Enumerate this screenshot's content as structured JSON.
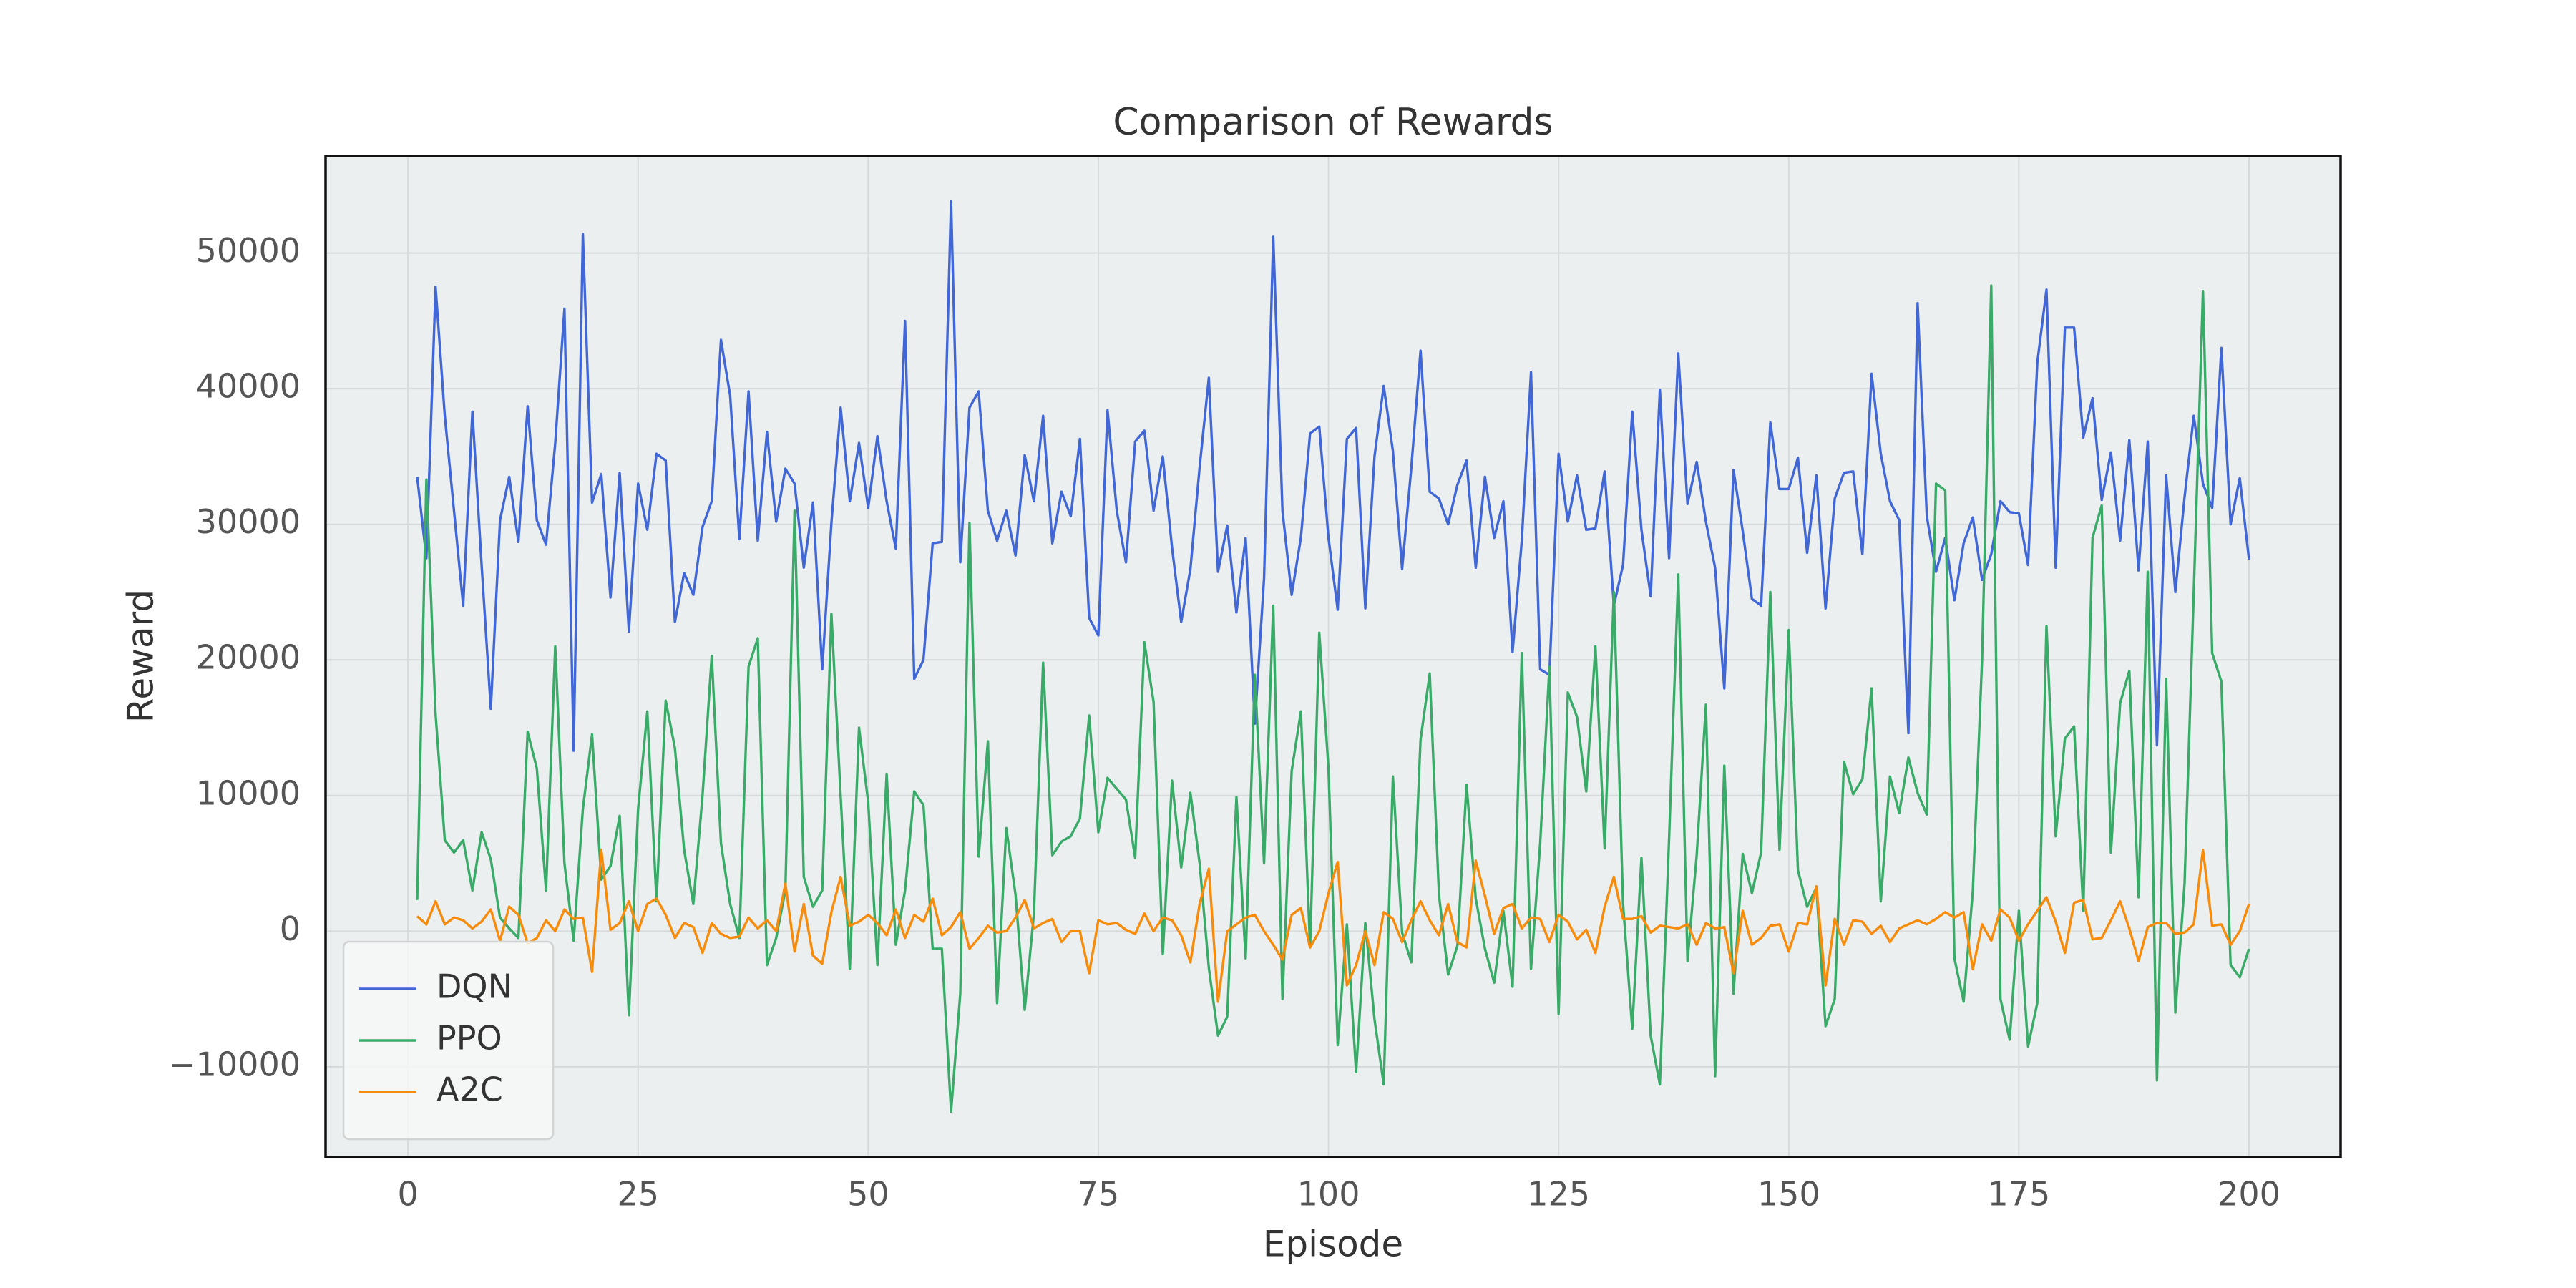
{
  "chart_data": {
    "type": "line",
    "title": "Comparison of Rewards",
    "xlabel": "Episode",
    "ylabel": "Reward",
    "x": [
      1,
      2,
      3,
      4,
      5,
      6,
      7,
      8,
      9,
      10,
      11,
      12,
      13,
      14,
      15,
      16,
      17,
      18,
      19,
      20,
      21,
      22,
      23,
      24,
      25,
      26,
      27,
      28,
      29,
      30,
      31,
      32,
      33,
      34,
      35,
      36,
      37,
      38,
      39,
      40,
      41,
      42,
      43,
      44,
      45,
      46,
      47,
      48,
      49,
      50,
      51,
      52,
      53,
      54,
      55,
      56,
      57,
      58,
      59,
      60,
      61,
      62,
      63,
      64,
      65,
      66,
      67,
      68,
      69,
      70,
      71,
      72,
      73,
      74,
      75,
      76,
      77,
      78,
      79,
      80,
      81,
      82,
      83,
      84,
      85,
      86,
      87,
      88,
      89,
      90,
      91,
      92,
      93,
      94,
      95,
      96,
      97,
      98,
      99,
      100,
      101,
      102,
      103,
      104,
      105,
      106,
      107,
      108,
      109,
      110,
      111,
      112,
      113,
      114,
      115,
      116,
      117,
      118,
      119,
      120,
      121,
      122,
      123,
      124,
      125,
      126,
      127,
      128,
      129,
      130,
      131,
      132,
      133,
      134,
      135,
      136,
      137,
      138,
      139,
      140,
      141,
      142,
      143,
      144,
      145,
      146,
      147,
      148,
      149,
      150,
      151,
      152,
      153,
      154,
      155,
      156,
      157,
      158,
      159,
      160,
      161,
      162,
      163,
      164,
      165,
      166,
      167,
      168,
      169,
      170,
      171,
      172,
      173,
      174,
      175,
      176,
      177,
      178,
      179,
      180,
      181,
      182,
      183,
      184,
      185,
      186,
      187,
      188,
      189,
      190,
      191,
      192,
      193,
      194,
      195,
      196,
      197,
      198,
      199,
      200
    ],
    "series": [
      {
        "name": "DQN",
        "color": "#4166d5",
        "values": [
          33500,
          27500,
          47500,
          38000,
          31000,
          24000,
          38300,
          27000,
          16400,
          30300,
          33500,
          28700,
          38700,
          30300,
          28500,
          36000,
          45900,
          13300,
          51400,
          31600,
          33700,
          24600,
          33800,
          22100,
          33000,
          29600,
          35200,
          34700,
          22800,
          26400,
          24800,
          29800,
          31700,
          43600,
          39500,
          28900,
          39800,
          28800,
          36800,
          30200,
          34100,
          33000,
          26800,
          31600,
          19300,
          30100,
          38600,
          31700,
          36000,
          31200,
          36500,
          31700,
          28200,
          45000,
          18600,
          20000,
          28600,
          28700,
          53800,
          27200,
          38600,
          39800,
          31000,
          28800,
          31000,
          27700,
          35100,
          31700,
          38000,
          28600,
          32400,
          30600,
          36300,
          23100,
          21800,
          38400,
          31000,
          27200,
          36100,
          36900,
          31000,
          35000,
          28300,
          22800,
          26700,
          34200,
          40800,
          26500,
          29900,
          23500,
          29000,
          15300,
          26000,
          51200,
          31000,
          24800,
          29000,
          36700,
          37200,
          29000,
          23700,
          36300,
          37100,
          23800,
          35000,
          40200,
          35400,
          26700,
          34200,
          42800,
          32400,
          31900,
          30000,
          32900,
          34700,
          26800,
          33500,
          29000,
          31700,
          20600,
          28800,
          41200,
          19300,
          18900,
          35200,
          30200,
          33600,
          29600,
          29700,
          33900,
          24000,
          27000,
          38300,
          29600,
          24700,
          39900,
          27500,
          42600,
          31500,
          34600,
          30200,
          26800,
          17900,
          34000,
          29500,
          24500,
          24000,
          37500,
          32600,
          32600,
          34900,
          27900,
          33600,
          23800,
          31900,
          33800,
          33900,
          27800,
          41100,
          35200,
          31700,
          30300,
          14600,
          46300,
          30600,
          26500,
          29000,
          24400,
          28600,
          30500,
          25900,
          27800,
          31700,
          30900,
          30800,
          27000,
          41900,
          47300,
          26800,
          44500,
          44500,
          36400,
          39300,
          31800,
          35300,
          28800,
          36200,
          26600,
          36100,
          13700,
          33600,
          25000,
          32000,
          38000,
          33000,
          31200,
          43000,
          30000,
          33400,
          27400
        ]
      },
      {
        "name": "PPO",
        "color": "#3aaa68",
        "values": [
          2300,
          33300,
          16000,
          6700,
          5800,
          6700,
          3000,
          7300,
          5300,
          1000,
          200,
          -500,
          14700,
          12000,
          3000,
          21000,
          5000,
          -700,
          9000,
          14500,
          3800,
          4800,
          8500,
          -6200,
          9000,
          16200,
          2200,
          17000,
          13500,
          6000,
          2000,
          10000,
          20300,
          6500,
          2000,
          -500,
          19500,
          21600,
          -2500,
          -500,
          3000,
          31000,
          4000,
          1800,
          3000,
          23400,
          10000,
          -2800,
          15000,
          9500,
          -2500,
          11600,
          -1000,
          3000,
          10300,
          9300,
          -1300,
          -1300,
          -13300,
          -4600,
          30100,
          5500,
          14000,
          -5300,
          7600,
          2700,
          -5800,
          1300,
          19800,
          5600,
          6600,
          7000,
          8300,
          15900,
          7300,
          11300,
          10500,
          9700,
          5400,
          21300,
          16900,
          -1700,
          11100,
          4700,
          10200,
          5000,
          -2700,
          -7700,
          -6300,
          9900,
          -2000,
          18900,
          5000,
          24000,
          -5000,
          11800,
          16200,
          -1200,
          22000,
          12000,
          -8400,
          500,
          -10400,
          600,
          -6500,
          -11300,
          11400,
          -100,
          -2300,
          14100,
          19000,
          2700,
          -3200,
          -1100,
          10800,
          2400,
          -1300,
          -3800,
          1500,
          -4100,
          20500,
          -2800,
          6500,
          19500,
          -6100,
          17600,
          15800,
          10300,
          21000,
          6100,
          25000,
          2000,
          -7200,
          5400,
          -7700,
          -11300,
          6800,
          26300,
          -2200,
          5600,
          16700,
          -10700,
          12200,
          -4600,
          5700,
          2800,
          5800,
          25000,
          6000,
          22200,
          4500,
          1800,
          3200,
          -7000,
          -5000,
          12500,
          10100,
          11200,
          17900,
          2200,
          11400,
          8700,
          12800,
          10200,
          8600,
          33000,
          32500,
          -2000,
          -5200,
          3000,
          20000,
          47600,
          -5000,
          -8000,
          1500,
          -8500,
          -5300,
          22500,
          7000,
          14200,
          15100,
          1500,
          29000,
          31400,
          5800,
          16800,
          19200,
          2500,
          26500,
          -11000,
          18600,
          -6000,
          3500,
          25000,
          47200,
          20500,
          18400,
          -2500,
          -3400,
          -1300
        ]
      },
      {
        "name": "A2C",
        "color": "#f78b0c",
        "values": [
          1100,
          500,
          2200,
          500,
          1000,
          800,
          200,
          700,
          1600,
          -700,
          1800,
          1200,
          -900,
          -500,
          800,
          0,
          1600,
          900,
          1000,
          -3000,
          6000,
          100,
          600,
          2200,
          0,
          2000,
          2400,
          1200,
          -500,
          600,
          300,
          -1600,
          600,
          -200,
          -500,
          -400,
          1000,
          200,
          800,
          0,
          3500,
          -1500,
          2000,
          -1800,
          -2400,
          1400,
          4000,
          400,
          700,
          1200,
          600,
          -300,
          1600,
          -500,
          1200,
          700,
          2400,
          -300,
          300,
          1400,
          -1300,
          -500,
          400,
          -100,
          0,
          1000,
          2300,
          200,
          600,
          900,
          -800,
          0,
          0,
          -3100,
          800,
          500,
          600,
          100,
          -200,
          1300,
          0,
          1000,
          800,
          -300,
          -2300,
          2000,
          4600,
          -5200,
          0,
          500,
          1000,
          1200,
          0,
          -1000,
          -2100,
          1200,
          1700,
          -1200,
          0,
          2800,
          5100,
          -4000,
          -2500,
          0,
          -2500,
          1400,
          900,
          -800,
          800,
          2200,
          800,
          -300,
          2000,
          -800,
          -1200,
          5200,
          2600,
          -200,
          1700,
          2000,
          200,
          1000,
          900,
          -800,
          1200,
          700,
          -600,
          100,
          -1600,
          1800,
          4000,
          900,
          900,
          1100,
          -100,
          400,
          300,
          200,
          500,
          -1000,
          600,
          200,
          300,
          -3100,
          1500,
          -1000,
          -500,
          400,
          500,
          -1500,
          600,
          500,
          3300,
          -4000,
          900,
          -1000,
          800,
          700,
          -200,
          400,
          -800,
          200,
          500,
          800,
          500,
          900,
          1400,
          1000,
          1400,
          -2800,
          500,
          -700,
          1600,
          1000,
          -700,
          500,
          1500,
          2500,
          700,
          -1600,
          2100,
          2300,
          -600,
          -500,
          800,
          2200,
          200,
          -2200,
          300,
          600,
          600,
          -200,
          -100,
          500,
          6000,
          400,
          500,
          -1000,
          0,
          2000
        ]
      }
    ],
    "xlim": [
      -8.95,
      209.95
    ],
    "xticks": [
      0,
      25,
      50,
      75,
      100,
      125,
      150,
      175,
      200
    ],
    "ylim": [
      -16655,
      57155
    ],
    "yticks": [
      {
        "value": -10000,
        "label": "−10000"
      },
      0,
      10000,
      20000,
      30000,
      40000,
      50000
    ],
    "grid": true,
    "legend": "lower left"
  }
}
